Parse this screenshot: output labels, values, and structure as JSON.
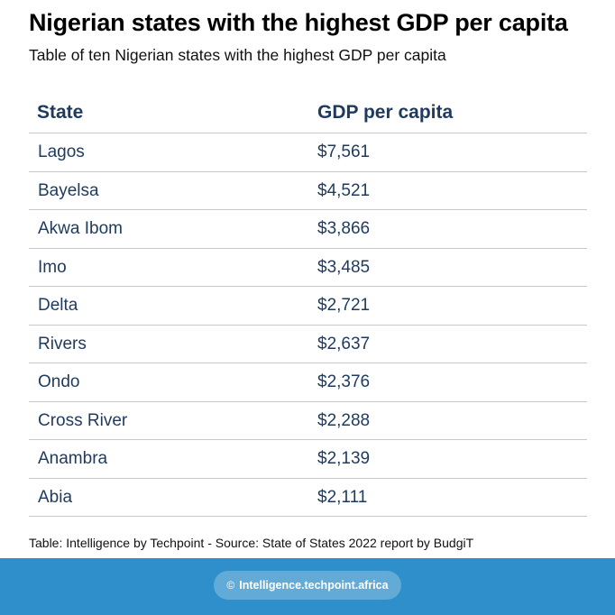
{
  "header": {
    "title": "Nigerian states with the highest GDP per capita",
    "subtitle": "Table of ten Nigerian states with the highest GDP per capita"
  },
  "chart_data": {
    "type": "table",
    "title": "Nigerian states with the highest GDP per capita",
    "subtitle": "Table of ten Nigerian states with the highest GDP per capita",
    "columns": [
      "State",
      "GDP per capita"
    ],
    "rows": [
      [
        "Lagos",
        "$7,561"
      ],
      [
        "Bayelsa",
        "$4,521"
      ],
      [
        "Akwa Ibom",
        "$3,866"
      ],
      [
        "Imo",
        "$3,485"
      ],
      [
        "Delta",
        "$2,721"
      ],
      [
        "Rivers",
        "$2,637"
      ],
      [
        "Ondo",
        "$2,376"
      ],
      [
        "Cross River",
        "$2,288"
      ],
      [
        "Anambra",
        "$2,139"
      ],
      [
        "Abia",
        "$2,111"
      ]
    ]
  },
  "source": "Table: Intelligence by Techpoint - Source: State of States 2022 report by BudgiT",
  "footer": {
    "icon": "copyright-icon",
    "link_text": "Intelligence.techpoint.africa"
  },
  "colors": {
    "header_text": "#1e3a5f",
    "footer_background": "#2e8fca"
  }
}
